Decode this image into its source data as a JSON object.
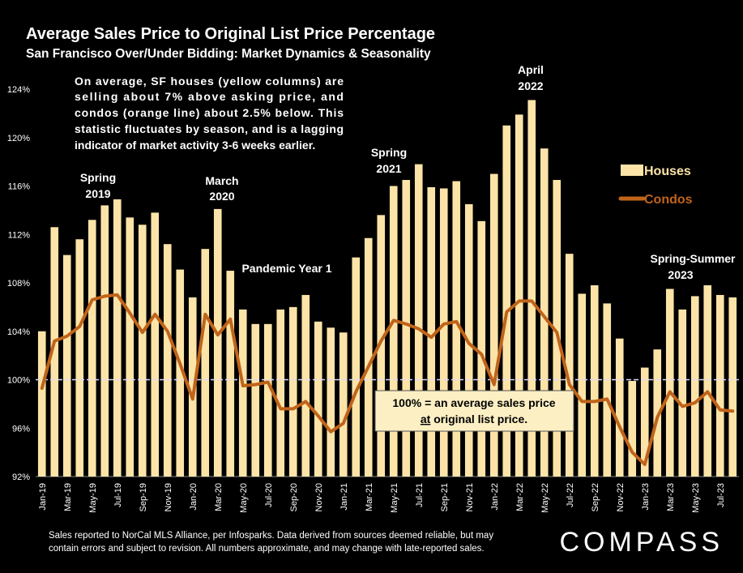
{
  "chart_data": {
    "type": "bar",
    "title": "Average Sales Price to Original List Price Percentage",
    "subtitle": "San Francisco Over/Under Bidding: Market Dynamics & Seasonality",
    "ylim": [
      92,
      124
    ],
    "yticks": [
      "92%",
      "96%",
      "100%",
      "104%",
      "108%",
      "112%",
      "116%",
      "120%",
      "124%"
    ],
    "reference_line": 100,
    "categories": [
      "Jan-19",
      "Feb-19",
      "Mar-19",
      "Apr-19",
      "May-19",
      "Jun-19",
      "Jul-19",
      "Aug-19",
      "Sep-19",
      "Oct-19",
      "Nov-19",
      "Dec-19",
      "Jan-20",
      "Feb-20",
      "Mar-20",
      "Apr-20",
      "May-20",
      "Jun-20",
      "Jul-20",
      "Aug-20",
      "Sep-20",
      "Oct-20",
      "Nov-20",
      "Dec-20",
      "Jan-21",
      "Feb-21",
      "Mar-21",
      "Apr-21",
      "May-21",
      "Jun-21",
      "Jul-21",
      "Aug-21",
      "Sep-21",
      "Oct-21",
      "Nov-21",
      "Dec-21",
      "Jan-22",
      "Feb-22",
      "Mar-22",
      "Apr-22",
      "May-22",
      "Jun-22",
      "Jul-22",
      "Aug-22",
      "Sep-22",
      "Oct-22",
      "Nov-22",
      "Dec-22",
      "Jan-23",
      "Feb-23",
      "Mar-23",
      "Apr-23",
      "May-23",
      "Jun-23",
      "Jul-23",
      "Aug-23"
    ],
    "xtick_labels": [
      "Jan-19",
      "",
      "Mar-19",
      "",
      "May-19",
      "",
      "Jul-19",
      "",
      "Sep-19",
      "",
      "Nov-19",
      "",
      "Jan-20",
      "",
      "Mar-20",
      "",
      "May-20",
      "",
      "Jul-20",
      "",
      "Sep-20",
      "",
      "Nov-20",
      "",
      "Jan-21",
      "",
      "Mar-21",
      "",
      "May-21",
      "",
      "Jul-21",
      "",
      "Sep-21",
      "",
      "Nov-21",
      "",
      "Jan-22",
      "",
      "Mar-22",
      "",
      "May-22",
      "",
      "Jul-22",
      "",
      "Sep-22",
      "",
      "Nov-22",
      "",
      "Jan-23",
      "",
      "Mar-23",
      "",
      "May-23",
      "",
      "Jul-23",
      ""
    ],
    "series": [
      {
        "name": "Houses",
        "kind": "bar",
        "color": "#FCE4A8",
        "values": [
          104.0,
          112.6,
          110.3,
          111.6,
          113.2,
          114.4,
          114.9,
          113.4,
          112.8,
          113.8,
          111.2,
          109.1,
          106.8,
          110.8,
          114.1,
          109.0,
          105.8,
          104.6,
          104.6,
          105.8,
          106.0,
          107.0,
          104.8,
          104.3,
          103.9,
          110.1,
          111.7,
          113.6,
          116.0,
          116.5,
          117.8,
          115.9,
          115.8,
          116.4,
          114.5,
          113.1,
          117.0,
          121.0,
          121.9,
          123.1,
          119.1,
          116.5,
          110.4,
          107.1,
          107.8,
          106.3,
          103.4,
          99.9,
          101.0,
          102.5,
          107.5,
          105.8,
          106.9,
          107.8,
          107.0,
          106.8
        ]
      },
      {
        "name": "Condos",
        "kind": "line",
        "color": "#C0641A",
        "values": [
          99.3,
          103.2,
          103.6,
          104.4,
          106.6,
          106.9,
          107.0,
          105.5,
          103.9,
          105.4,
          104.0,
          101.3,
          98.4,
          105.4,
          103.7,
          105.0,
          99.5,
          99.6,
          99.8,
          97.6,
          97.6,
          98.2,
          97.0,
          95.7,
          96.4,
          99.0,
          101.1,
          103.2,
          104.9,
          104.6,
          104.2,
          103.5,
          104.6,
          104.8,
          103.0,
          102.1,
          99.6,
          105.6,
          106.5,
          106.5,
          105.2,
          103.9,
          99.6,
          98.2,
          98.2,
          98.4,
          96.1,
          94.0,
          93.0,
          96.9,
          99.0,
          97.8,
          98.1,
          99.0,
          97.5,
          97.4
        ]
      }
    ],
    "legend": {
      "placement": "right",
      "items": [
        "Houses",
        "Condos"
      ]
    },
    "annotations": [
      {
        "lines": [
          "Spring",
          "2019"
        ]
      },
      {
        "lines": [
          "March",
          "2020"
        ]
      },
      {
        "lines": [
          "Pandemic Year 1"
        ]
      },
      {
        "lines": [
          "Spring",
          "2021"
        ]
      },
      {
        "lines": [
          "April",
          "2022"
        ]
      },
      {
        "lines": [
          "Spring-Summer",
          "2023"
        ]
      }
    ],
    "note_box": {
      "lines": [
        "On average, SF houses (yellow columns) are",
        "selling about 7% above asking price, and",
        "condos (orange line) about 2.5% below. This",
        "statistic fluctuates by season, and is a lagging",
        "indicator of market activity 3-6 weeks earlier."
      ]
    },
    "callout_box": {
      "line1": "100% = an average sales price",
      "line2_underlined": "at",
      "line2_rest": " original list price."
    }
  },
  "footer": {
    "lines": [
      "Sales reported to NorCal MLS Alliance, per Infosparks. Data derived from sources deemed reliable, but may",
      "contain errors and subject to revision. All numbers approximate, and may change with late-reported sales."
    ],
    "brand": "COMPASS"
  }
}
